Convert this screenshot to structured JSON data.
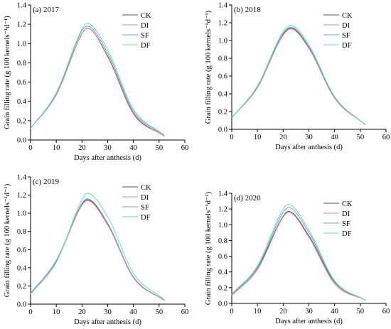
{
  "chart_data": [
    {
      "type": "line",
      "title": "(a) 2017",
      "xlabel": "Days after anthesis (d)",
      "ylabel": "Grain filling rate (g 100 kernels⁻¹d⁻¹)",
      "xlim": [
        0,
        60
      ],
      "ylim": [
        0.0,
        1.4
      ],
      "xticks": [
        "0",
        "10",
        "20",
        "30",
        "40",
        "50",
        "60"
      ],
      "yticks": [
        "0.0",
        "0.2",
        "0.4",
        "0.6",
        "0.8",
        "1.0",
        "1.2",
        "1.4"
      ],
      "legend_position": "top-right",
      "series": [
        {
          "name": "CK",
          "color": "#555555",
          "x": [
            0,
            10,
            20,
            22,
            30,
            40,
            52
          ],
          "y": [
            0.12,
            0.47,
            1.1,
            1.16,
            0.87,
            0.28,
            0.04
          ]
        },
        {
          "name": "DI",
          "color": "#e8837d",
          "x": [
            0,
            10,
            20,
            22,
            30,
            40,
            52
          ],
          "y": [
            0.12,
            0.47,
            1.1,
            1.16,
            0.86,
            0.27,
            0.04
          ]
        },
        {
          "name": "SF",
          "color": "#6fa0d8",
          "x": [
            0,
            10,
            20,
            22,
            30,
            40,
            52
          ],
          "y": [
            0.12,
            0.48,
            1.13,
            1.18,
            0.9,
            0.3,
            0.05
          ]
        },
        {
          "name": "DF",
          "color": "#6fd6b8",
          "x": [
            0,
            10,
            20,
            22,
            30,
            40,
            52
          ],
          "y": [
            0.12,
            0.49,
            1.15,
            1.21,
            0.93,
            0.32,
            0.05
          ]
        }
      ]
    },
    {
      "type": "line",
      "title": "(b) 2018",
      "xlabel": "Days after anthesis (d)",
      "ylabel": "Grain filling rate (g 100 kernels⁻¹d⁻¹)",
      "xlim": [
        0,
        60
      ],
      "ylim": [
        0.0,
        1.4
      ],
      "xticks": [
        "0",
        "10",
        "20",
        "30",
        "40",
        "50",
        "60"
      ],
      "yticks": [
        "0.0",
        "0.2",
        "0.4",
        "0.6",
        "0.8",
        "1.0",
        "1.2",
        "1.4"
      ],
      "legend_position": "top-right",
      "series": [
        {
          "name": "CK",
          "color": "#555555",
          "x": [
            0,
            10,
            20,
            23,
            30,
            40,
            52
          ],
          "y": [
            0.13,
            0.48,
            1.07,
            1.14,
            0.92,
            0.36,
            0.05
          ]
        },
        {
          "name": "DI",
          "color": "#e8837d",
          "x": [
            0,
            10,
            20,
            23,
            30,
            40,
            52
          ],
          "y": [
            0.13,
            0.47,
            1.06,
            1.13,
            0.91,
            0.35,
            0.05
          ]
        },
        {
          "name": "SF",
          "color": "#6fa0d8",
          "x": [
            0,
            10,
            20,
            23,
            30,
            40,
            52
          ],
          "y": [
            0.13,
            0.48,
            1.08,
            1.15,
            0.93,
            0.36,
            0.05
          ]
        },
        {
          "name": "DF",
          "color": "#6fd6b8",
          "x": [
            0,
            10,
            20,
            23,
            30,
            40,
            52
          ],
          "y": [
            0.13,
            0.49,
            1.1,
            1.17,
            0.95,
            0.37,
            0.05
          ]
        }
      ]
    },
    {
      "type": "line",
      "title": "(c) 2019",
      "xlabel": "Days after anthesis (d)",
      "ylabel": "Grain filling rate (g 100 kernels⁻¹d⁻¹)",
      "xlim": [
        0,
        60
      ],
      "ylim": [
        0.0,
        1.4
      ],
      "xticks": [
        "0",
        "10",
        "20",
        "30",
        "40",
        "50",
        "60"
      ],
      "yticks": [
        "0.0",
        "0.2",
        "0.4",
        "0.6",
        "0.8",
        "1.0",
        "1.2",
        "1.4"
      ],
      "legend_position": "top-right",
      "series": [
        {
          "name": "CK",
          "color": "#555555",
          "x": [
            0,
            10,
            20,
            22,
            30,
            40,
            52
          ],
          "y": [
            0.12,
            0.48,
            1.1,
            1.15,
            0.88,
            0.3,
            0.04
          ]
        },
        {
          "name": "DI",
          "color": "#e8837d",
          "x": [
            0,
            10,
            20,
            22,
            30,
            40,
            52
          ],
          "y": [
            0.12,
            0.47,
            1.09,
            1.14,
            0.87,
            0.29,
            0.04
          ]
        },
        {
          "name": "SF",
          "color": "#6fa0d8",
          "x": [
            0,
            10,
            20,
            22,
            30,
            40,
            52
          ],
          "y": [
            0.12,
            0.48,
            1.11,
            1.16,
            0.89,
            0.3,
            0.04
          ]
        },
        {
          "name": "DF",
          "color": "#6fd6b8",
          "x": [
            0,
            10,
            20,
            22,
            30,
            40,
            52
          ],
          "y": [
            0.11,
            0.46,
            1.15,
            1.22,
            0.96,
            0.34,
            0.05
          ]
        }
      ]
    },
    {
      "type": "line",
      "title": "(d) 2020",
      "xlabel": "Days after anthesis (d)",
      "ylabel": "Grain filling rate (g 100 kernels⁻¹d⁻¹)",
      "xlim": [
        0,
        60
      ],
      "ylim": [
        0.0,
        1.4
      ],
      "xticks": [
        "0",
        "10",
        "20",
        "30",
        "40",
        "50",
        "60"
      ],
      "yticks": [
        "0.0",
        "0.2",
        "0.4",
        "0.6",
        "0.8",
        "1.0",
        "1.2",
        "1.4"
      ],
      "legend_position": "top-right",
      "series": [
        {
          "name": "CK",
          "color": "#555555",
          "x": [
            0,
            10,
            20,
            22,
            30,
            40,
            52
          ],
          "y": [
            0.11,
            0.45,
            1.11,
            1.17,
            0.86,
            0.27,
            0.04
          ]
        },
        {
          "name": "DI",
          "color": "#e8837d",
          "x": [
            0,
            10,
            20,
            22,
            30,
            40,
            52
          ],
          "y": [
            0.1,
            0.43,
            1.1,
            1.16,
            0.84,
            0.25,
            0.04
          ]
        },
        {
          "name": "SF",
          "color": "#6fa0d8",
          "x": [
            0,
            10,
            20,
            22,
            30,
            40,
            52
          ],
          "y": [
            0.11,
            0.46,
            1.16,
            1.22,
            0.9,
            0.28,
            0.04
          ]
        },
        {
          "name": "DF",
          "color": "#6fd6b8",
          "x": [
            0,
            10,
            20,
            22,
            30,
            40,
            52
          ],
          "y": [
            0.12,
            0.48,
            1.2,
            1.26,
            0.93,
            0.29,
            0.04
          ]
        }
      ]
    }
  ]
}
